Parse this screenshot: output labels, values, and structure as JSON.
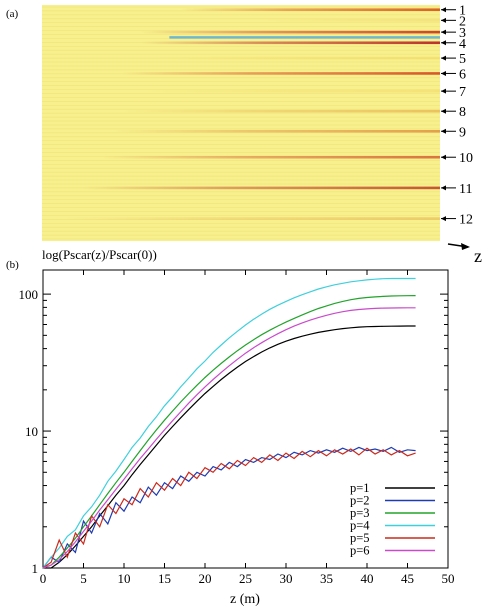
{
  "panel_a": {
    "label": "(a)",
    "axis_label": "z",
    "line_labels": [
      "1",
      "2",
      "3",
      "4",
      "5",
      "6",
      "7",
      "8",
      "9",
      "10",
      "11",
      "12"
    ]
  },
  "chart_data": [
    {
      "type": "heatmap",
      "panel": "(a)",
      "description_of_lines": "12 horizontal streaks over yellow field; streak intensity shown by color",
      "line_ids": [
        1,
        2,
        3,
        4,
        5,
        6,
        7,
        8,
        9,
        10,
        11,
        12
      ],
      "line_row_fraction": [
        0.02,
        0.065,
        0.115,
        0.16,
        0.225,
        0.29,
        0.365,
        0.45,
        0.535,
        0.645,
        0.775,
        0.905
      ],
      "line_start_z_fraction": [
        0.35,
        0.55,
        0.25,
        0.25,
        0.28,
        0.2,
        0.25,
        0.2,
        0.18,
        0.15,
        0.1,
        0.05
      ],
      "line_strength": [
        0.85,
        0.2,
        0.9,
        0.95,
        0.3,
        0.85,
        0.25,
        0.5,
        0.65,
        0.7,
        0.8,
        0.45
      ],
      "line_colors": [
        "#d44a14",
        "#e8b04a",
        "#c8321e",
        "#b82828",
        "#f0c040",
        "#d23c18",
        "#f0b838",
        "#e09430",
        "#d8742a",
        "#cc4020",
        "#b83020",
        "#e0a040"
      ],
      "highlight_band_ids": [
        3,
        4
      ],
      "highlight_color": "#6fb7cf",
      "xlabel": "z",
      "background": "#f7f08c"
    },
    {
      "type": "line",
      "panel": "(b)",
      "title": "log(Pscar(z)/Pscar(0))",
      "xlabel": "z (m)",
      "ylabel": "",
      "xlim": [
        0,
        50
      ],
      "ylim": [
        1,
        150
      ],
      "ylog": true,
      "xticks": [
        0,
        5,
        10,
        15,
        20,
        25,
        30,
        35,
        40,
        45,
        50
      ],
      "yticks": [
        1,
        10,
        100
      ],
      "legend_position": "bottom-right",
      "x": [
        0,
        1,
        2,
        3,
        4,
        5,
        6,
        7,
        8,
        9,
        10,
        11,
        12,
        13,
        14,
        15,
        16,
        17,
        18,
        19,
        20,
        21,
        22,
        23,
        24,
        25,
        26,
        27,
        28,
        29,
        30,
        31,
        32,
        33,
        34,
        35,
        36,
        37,
        38,
        39,
        40,
        41,
        42,
        43,
        44,
        45,
        46
      ],
      "series": [
        {
          "name": "p=1",
          "color": "#000000",
          "values": [
            1,
            1,
            1.1,
            1.25,
            1.45,
            1.7,
            2.0,
            2.4,
            2.85,
            3.4,
            4.0,
            4.8,
            5.7,
            6.7,
            7.9,
            9.3,
            10.8,
            12.5,
            14.4,
            16.5,
            18.8,
            21.2,
            23.8,
            26.5,
            29.3,
            32.2,
            35.0,
            37.8,
            40.5,
            43.0,
            45.3,
            47.4,
            49.3,
            51.0,
            52.5,
            53.8,
            55.0,
            56.0,
            56.8,
            57.4,
            57.8,
            58.0,
            58.2,
            58.3,
            58.4,
            58.5,
            58.5
          ]
        },
        {
          "name": "p=2",
          "color": "#1f3bb3",
          "values": [
            1,
            1.2,
            1.1,
            1.5,
            1.3,
            2.2,
            1.8,
            2.5,
            2.1,
            3.0,
            2.6,
            3.3,
            3.0,
            3.9,
            3.4,
            4.2,
            3.8,
            4.7,
            4.3,
            5.0,
            4.7,
            5.5,
            5.2,
            5.9,
            5.5,
            6.2,
            5.9,
            6.4,
            6.2,
            6.8,
            6.4,
            7.0,
            6.7,
            7.2,
            6.9,
            7.3,
            7.0,
            7.5,
            7.1,
            7.6,
            7.2,
            7.4,
            7.1,
            7.6,
            7.0,
            7.3,
            7.2
          ]
        },
        {
          "name": "p=3",
          "color": "#22a32c",
          "values": [
            1,
            1.05,
            1.2,
            1.4,
            1.65,
            2.0,
            2.4,
            2.9,
            3.5,
            4.2,
            5.0,
            6.0,
            7.2,
            8.6,
            10.2,
            12.0,
            14.0,
            16.3,
            18.8,
            21.6,
            24.6,
            27.8,
            31.2,
            34.8,
            38.6,
            42.5,
            46.5,
            50.5,
            54.5,
            58.5,
            62.5,
            66.5,
            70.5,
            74.5,
            78.5,
            82.0,
            85.5,
            88.5,
            91.0,
            93.0,
            94.5,
            95.5,
            96.3,
            96.8,
            97.2,
            97.4,
            97.5
          ]
        },
        {
          "name": "p=4",
          "color": "#3fd0dc",
          "values": [
            1,
            1.2,
            1.4,
            1.7,
            1.9,
            2.4,
            2.8,
            3.4,
            4.3,
            5.1,
            6.2,
            7.6,
            8.9,
            10.8,
            12.7,
            15.3,
            17.8,
            21.0,
            24.4,
            28.5,
            32.5,
            37.5,
            42.5,
            48.0,
            53.5,
            59.5,
            65.5,
            71.5,
            77.5,
            83.0,
            88.5,
            94.0,
            99.0,
            104,
            109,
            113,
            117,
            120,
            123,
            125,
            127,
            128.5,
            129.5,
            130,
            130,
            130,
            130
          ]
        },
        {
          "name": "p=5",
          "color": "#cc2a1c",
          "values": [
            1,
            1.1,
            1.6,
            1.2,
            1.8,
            1.5,
            2.4,
            2.0,
            2.9,
            2.5,
            3.2,
            2.9,
            3.8,
            3.3,
            4.2,
            3.7,
            4.5,
            4.0,
            5.0,
            4.5,
            5.4,
            5.0,
            5.8,
            5.3,
            6.1,
            5.6,
            6.4,
            5.9,
            6.7,
            6.1,
            6.9,
            6.3,
            7.1,
            6.5,
            7.2,
            6.6,
            7.3,
            6.8,
            7.4,
            6.7,
            7.5,
            6.8,
            7.3,
            6.7,
            7.2,
            6.6,
            6.9
          ]
        },
        {
          "name": "p=6",
          "color": "#c94bc9",
          "values": [
            1,
            1.05,
            1.15,
            1.32,
            1.55,
            1.85,
            2.2,
            2.65,
            3.15,
            3.75,
            4.45,
            5.3,
            6.3,
            7.4,
            8.7,
            10.2,
            11.9,
            13.8,
            16.0,
            18.4,
            21.0,
            23.8,
            26.8,
            30.0,
            33.4,
            37.0,
            40.6,
            44.2,
            47.8,
            51.4,
            55.0,
            58.4,
            61.6,
            64.6,
            67.4,
            70.0,
            72.4,
            74.4,
            76.0,
            77.2,
            78.0,
            78.6,
            79.0,
            79.2,
            79.3,
            79.4,
            79.4
          ]
        }
      ]
    }
  ],
  "panel_b": {
    "label": "(b)",
    "title": "log(Pscar(z)/Pscar(0))",
    "xlabel": "z (m)"
  }
}
